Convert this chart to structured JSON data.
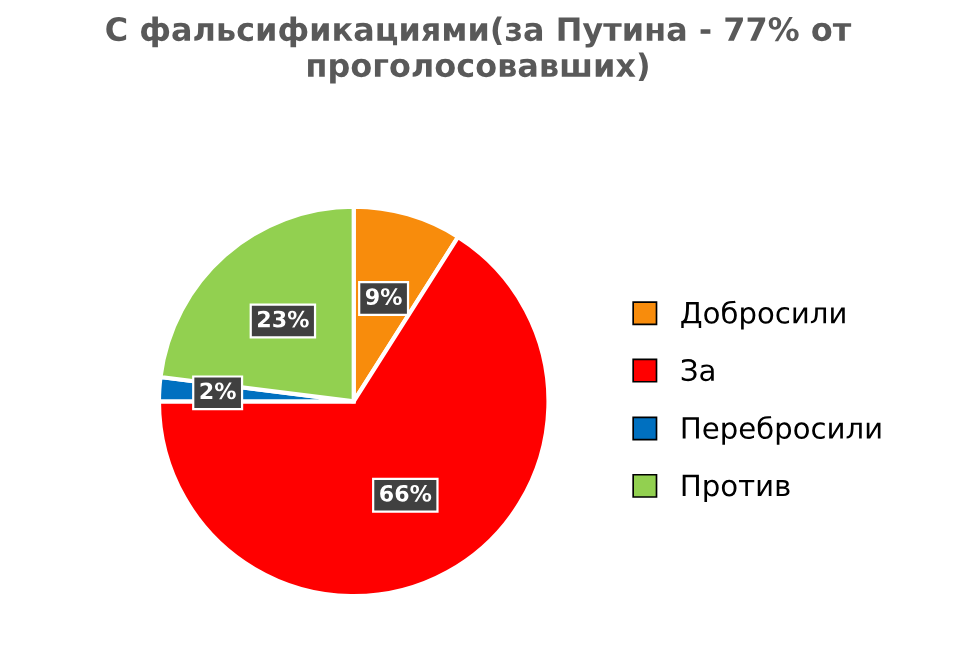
{
  "chart_data": {
    "type": "pie",
    "title": "С фальсификациями(за Путина - 77% от проголосовавших)",
    "categories": [
      "Добросили",
      "За",
      "Перебросили",
      "Против"
    ],
    "values": [
      9,
      66,
      2,
      23
    ],
    "colors": [
      "#f88c0c",
      "#ff0000",
      "#0070c0",
      "#92d050"
    ],
    "value_labels": [
      "9%",
      "66%",
      "2%",
      "23%"
    ],
    "legend": "right"
  }
}
